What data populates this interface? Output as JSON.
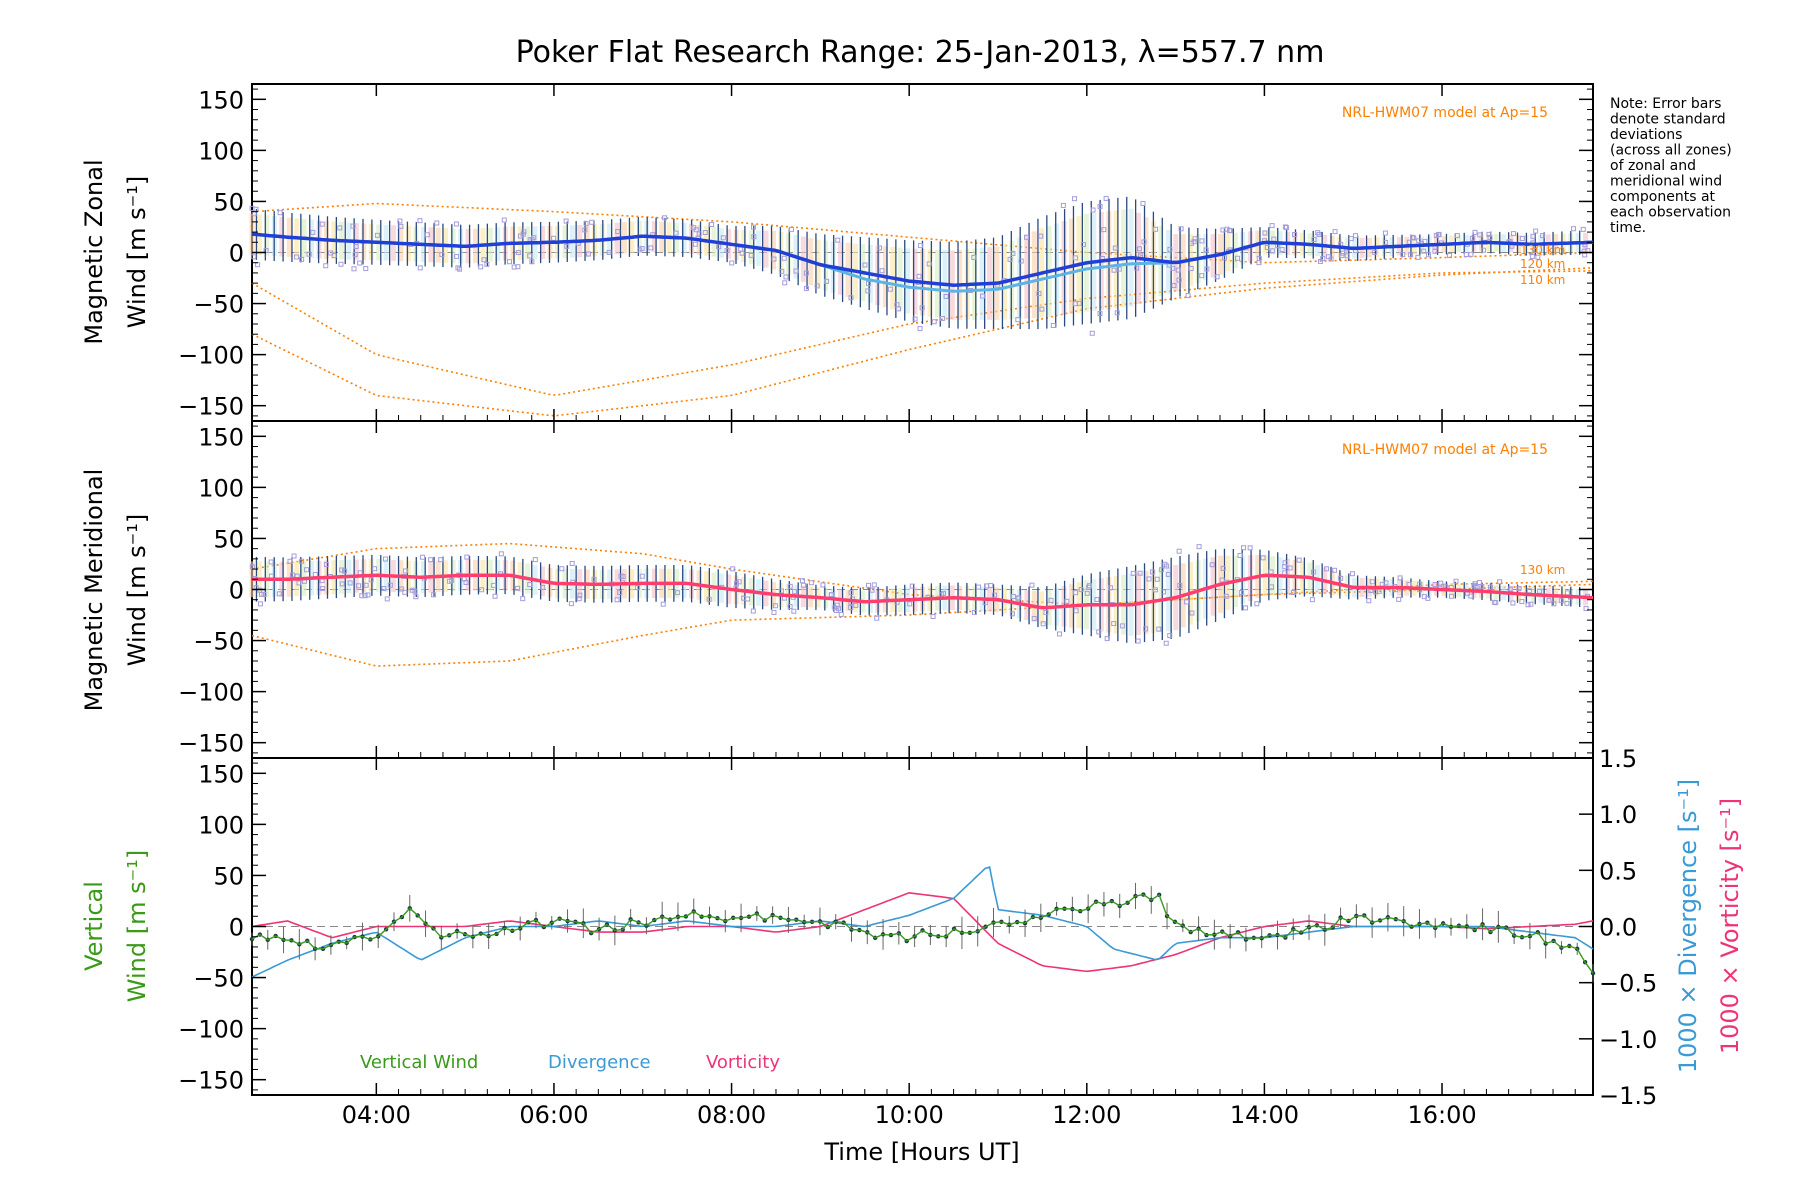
{
  "title": "Poker Flat Research Range: 25-Jan-2013, λ=557.7 nm",
  "note_lines": [
    "Note: Error bars",
    "denote standard",
    "deviations",
    "(across all zones)",
    "of zonal and",
    "meridional wind",
    "components at",
    "each observation",
    "time."
  ],
  "x_label": "Time [Hours UT]",
  "x_ticks": [
    "04:00",
    "06:00",
    "08:00",
    "10:00",
    "12:00",
    "14:00",
    "16:00"
  ],
  "x_tick_values": [
    4,
    6,
    8,
    10,
    12,
    14,
    16
  ],
  "y_ticks": [
    "150",
    "100",
    "50",
    "0",
    "−50",
    "−100",
    "−150"
  ],
  "y_tick_values": [
    150,
    100,
    50,
    0,
    -50,
    -100,
    -150
  ],
  "right_ticks": [
    "1.5",
    "1.0",
    "0.5",
    "0.0",
    "−0.5",
    "−1.0",
    "−1.5"
  ],
  "right_tick_values": [
    1.5,
    1.0,
    0.5,
    0.0,
    -0.5,
    -1.0,
    -1.5
  ],
  "colors": {
    "zonal": "#1f3fd6",
    "zonal_light": "#5ab4e6",
    "meridional": "#ff3d6e",
    "model": "#ff7f00",
    "scatter": "#a39ddc",
    "vertical": "#3a9a1a",
    "divergence": "#3a9ad6",
    "vorticity": "#ee3377",
    "bars": "#2a4a80"
  },
  "panels": {
    "zonal": {
      "ylabel_line1": "Magnetic Zonal",
      "ylabel_line2": "Wind [m s⁻¹]",
      "model_label": "NRL-HWM07 model at Ap=15",
      "alt_labels": [
        "130 km",
        "120 km",
        "110 km"
      ]
    },
    "meridional": {
      "ylabel_line1": "Magnetic Meridional",
      "ylabel_line2": "Wind [m s⁻¹]",
      "model_label": "NRL-HWM07 model at Ap=15",
      "alt_labels": [
        "130 km"
      ]
    },
    "vertical": {
      "ylabel_line1": "Vertical",
      "ylabel_line2": "Wind [m s⁻¹]",
      "right_label_div": "1000 × Divergence [s⁻¹]",
      "right_label_vor": "1000 × Vorticity [s⁻¹]",
      "legend": [
        "Vertical Wind",
        "Divergence",
        "Vorticity"
      ]
    }
  },
  "chart_data": [
    {
      "type": "line",
      "title": "Magnetic Zonal Wind",
      "xlabel": "Time [Hours UT]",
      "ylabel": "Magnetic Zonal Wind [m s⁻¹]",
      "xlim": [
        2.6,
        17.7
      ],
      "ylim": [
        -165,
        165
      ],
      "series": [
        {
          "name": "Zonal wind",
          "x": [
            2.6,
            3.0,
            3.5,
            4.0,
            4.5,
            5.0,
            5.5,
            6.0,
            6.5,
            7.0,
            7.5,
            8.0,
            8.5,
            9.0,
            9.5,
            10.0,
            10.5,
            11.0,
            11.5,
            12.0,
            12.5,
            13.0,
            13.5,
            14.0,
            14.5,
            15.0,
            15.5,
            16.0,
            16.5,
            17.0,
            17.7
          ],
          "y": [
            18,
            15,
            12,
            10,
            8,
            6,
            9,
            10,
            12,
            16,
            14,
            8,
            2,
            -12,
            -20,
            -28,
            -32,
            -30,
            -20,
            -10,
            -5,
            -10,
            -2,
            10,
            8,
            4,
            6,
            8,
            10,
            8,
            10
          ]
        },
        {
          "name": "HWM07 110 km",
          "x": [
            2.6,
            4,
            6,
            8,
            10,
            12,
            14,
            16,
            17.7
          ],
          "y": [
            -30,
            -100,
            -140,
            -110,
            -70,
            -45,
            -30,
            -20,
            -18
          ]
        },
        {
          "name": "HWM07 120 km",
          "x": [
            2.6,
            4,
            6,
            8,
            10,
            12,
            14,
            16,
            17.7
          ],
          "y": [
            -80,
            -140,
            -160,
            -140,
            -95,
            -55,
            -35,
            -22,
            -15
          ]
        },
        {
          "name": "HWM07 130 km",
          "x": [
            2.6,
            4,
            6,
            8,
            10,
            12,
            14,
            16,
            17.7
          ],
          "y": [
            40,
            48,
            40,
            30,
            15,
            0,
            -10,
            -5,
            0
          ]
        }
      ]
    },
    {
      "type": "line",
      "title": "Magnetic Meridional Wind",
      "xlabel": "Time [Hours UT]",
      "ylabel": "Magnetic Meridional Wind [m s⁻¹]",
      "xlim": [
        2.6,
        17.7
      ],
      "ylim": [
        -165,
        165
      ],
      "series": [
        {
          "name": "Meridional wind",
          "x": [
            2.6,
            3.0,
            3.5,
            4.0,
            4.5,
            5.0,
            5.5,
            6.0,
            6.5,
            7.0,
            7.5,
            8.0,
            8.5,
            9.0,
            9.5,
            10.0,
            10.5,
            11.0,
            11.5,
            12.0,
            12.5,
            13.0,
            13.5,
            14.0,
            14.5,
            15.0,
            15.5,
            16.0,
            16.5,
            17.0,
            17.7
          ],
          "y": [
            10,
            10,
            12,
            14,
            12,
            14,
            14,
            6,
            5,
            6,
            6,
            0,
            -5,
            -8,
            -12,
            -10,
            -8,
            -10,
            -18,
            -15,
            -15,
            -8,
            5,
            14,
            12,
            2,
            2,
            0,
            -2,
            -5,
            -8
          ]
        },
        {
          "name": "HWM07 110 km",
          "x": [
            2.6,
            4,
            5.5,
            7,
            8,
            10,
            12,
            14,
            16,
            17.7
          ],
          "y": [
            -45,
            -75,
            -70,
            -45,
            -30,
            -25,
            -15,
            -5,
            0,
            5
          ]
        },
        {
          "name": "HWM07 130 km",
          "x": [
            2.6,
            4,
            5.5,
            7,
            8,
            10,
            12,
            14,
            16,
            17.7
          ],
          "y": [
            20,
            40,
            45,
            35,
            20,
            -5,
            -15,
            -5,
            5,
            8
          ]
        }
      ]
    },
    {
      "type": "line",
      "title": "Vertical Wind, Divergence and Vorticity",
      "xlabel": "Time [Hours UT]",
      "ylabel": "Vertical Wind [m s⁻¹]",
      "y2label": "1000 × Divergence [s⁻¹] / 1000 × Vorticity [s⁻¹]",
      "xlim": [
        2.6,
        17.7
      ],
      "ylim": [
        -165,
        165
      ],
      "y2lim": [
        -1.5,
        1.5
      ],
      "series": [
        {
          "name": "Vertical Wind",
          "axis": "left",
          "x": [
            2.6,
            3.0,
            3.5,
            4.0,
            4.4,
            4.6,
            5.0,
            5.5,
            6.0,
            6.5,
            7.0,
            7.5,
            8.0,
            8.5,
            9.0,
            9.5,
            10.0,
            10.5,
            11.0,
            11.5,
            12.0,
            12.5,
            12.8,
            13.0,
            13.5,
            14.0,
            14.5,
            15.0,
            15.5,
            16.0,
            16.5,
            17.0,
            17.5,
            17.7
          ],
          "y": [
            -10,
            -15,
            -18,
            -12,
            15,
            -5,
            -10,
            0,
            5,
            -5,
            5,
            10,
            10,
            8,
            5,
            -5,
            -10,
            -5,
            0,
            10,
            18,
            25,
            30,
            0,
            -5,
            -10,
            -5,
            10,
            5,
            0,
            -2,
            -8,
            -20,
            -45
          ]
        },
        {
          "name": "Divergence",
          "axis": "right",
          "x": [
            2.6,
            3.0,
            3.5,
            4.0,
            4.5,
            5.0,
            5.5,
            6.0,
            6.5,
            7.0,
            7.5,
            8.0,
            8.5,
            9.0,
            9.5,
            10.0,
            10.5,
            10.9,
            11.0,
            11.5,
            12.0,
            12.3,
            12.8,
            13.0,
            13.5,
            14.0,
            14.5,
            15.0,
            15.5,
            16.0,
            16.5,
            17.0,
            17.5,
            17.7
          ],
          "y": [
            -0.45,
            -0.3,
            -0.15,
            -0.05,
            -0.3,
            -0.1,
            0.0,
            0.0,
            0.05,
            0.0,
            0.05,
            0.0,
            0.0,
            0.05,
            0.0,
            0.1,
            0.25,
            0.55,
            0.15,
            0.1,
            0.0,
            -0.2,
            -0.3,
            -0.15,
            -0.1,
            -0.1,
            -0.05,
            0.0,
            0.0,
            0.0,
            0.0,
            -0.05,
            -0.1,
            -0.2
          ]
        },
        {
          "name": "Vorticity",
          "axis": "right",
          "x": [
            2.6,
            3.0,
            3.5,
            4.0,
            4.5,
            5.0,
            5.5,
            6.0,
            6.5,
            7.0,
            7.5,
            8.0,
            8.5,
            9.0,
            9.5,
            10.0,
            10.5,
            11.0,
            11.5,
            12.0,
            12.5,
            13.0,
            13.5,
            14.0,
            14.5,
            15.0,
            15.5,
            16.0,
            16.5,
            17.0,
            17.5,
            17.7
          ],
          "y": [
            0.0,
            0.05,
            -0.1,
            0.0,
            0.0,
            0.0,
            0.05,
            0.0,
            -0.05,
            -0.05,
            0.0,
            0.0,
            -0.05,
            0.0,
            0.15,
            0.3,
            0.25,
            -0.15,
            -0.35,
            -0.4,
            -0.35,
            -0.25,
            -0.1,
            0.0,
            0.05,
            0.0,
            0.0,
            0.0,
            -0.02,
            0.0,
            0.02,
            0.05
          ]
        }
      ],
      "legend": [
        "Vertical Wind",
        "Divergence",
        "Vorticity"
      ],
      "legend_position": "bottom-left"
    }
  ]
}
